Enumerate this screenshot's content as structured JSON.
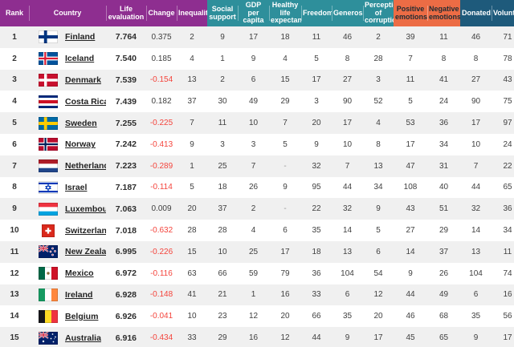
{
  "colors": {
    "purple": "#8E2E90",
    "teal": "#2E8F9B",
    "orange": "#EC6C45",
    "navy": "#1E5A7B",
    "negative_red": "#F4443C",
    "row_stripe": "#F0F0F0"
  },
  "header": {
    "columns": [
      {
        "id": "rank",
        "label": "Rank",
        "group": "purple"
      },
      {
        "id": "country",
        "label": "Country",
        "group": "purple"
      },
      {
        "id": "life_evaluation",
        "label": "Life evaluation",
        "group": "purple"
      },
      {
        "id": "change",
        "label": "Change",
        "group": "purple"
      },
      {
        "id": "inequality",
        "label": "Inequality",
        "group": "purple"
      },
      {
        "id": "social_support",
        "label": "Social support",
        "group": "teal"
      },
      {
        "id": "gdp_per_capita",
        "label": "GDP per capita",
        "group": "teal"
      },
      {
        "id": "healthy_life_expectancy",
        "label": "Healthy life expectancy",
        "group": "teal"
      },
      {
        "id": "freedom",
        "label": "Freedom",
        "group": "teal"
      },
      {
        "id": "generosity",
        "label": "Generosity",
        "group": "teal"
      },
      {
        "id": "perceptions_of_corruption",
        "label": "Perceptions of corruption",
        "group": "teal"
      },
      {
        "id": "positive_emotions",
        "label": "Positive emotions",
        "group": "orange"
      },
      {
        "id": "negative_emotions",
        "label": "Negative emotions",
        "group": "orange"
      },
      {
        "id": "donated",
        "label": "Donated",
        "group": "navy"
      },
      {
        "id": "volunteered",
        "label": "Volunteered",
        "group": "navy"
      }
    ]
  },
  "rows": [
    {
      "rank": "1",
      "country": "Finland",
      "flag": "fi",
      "life_evaluation": "7.764",
      "change": "0.375",
      "inequality": "2",
      "social_support": "9",
      "gdp_per_capita": "17",
      "healthy_life_expectancy": "18",
      "freedom": "11",
      "generosity": "46",
      "perceptions_of_corruption": "2",
      "positive_emotions": "39",
      "negative_emotions": "11",
      "donated": "46",
      "volunteered": "71"
    },
    {
      "rank": "2",
      "country": "Iceland",
      "flag": "is",
      "life_evaluation": "7.540",
      "change": "0.185",
      "inequality": "4",
      "social_support": "1",
      "gdp_per_capita": "9",
      "healthy_life_expectancy": "4",
      "freedom": "5",
      "generosity": "8",
      "perceptions_of_corruption": "28",
      "positive_emotions": "7",
      "negative_emotions": "8",
      "donated": "8",
      "volunteered": "78"
    },
    {
      "rank": "3",
      "country": "Denmark",
      "flag": "dk",
      "life_evaluation": "7.539",
      "change": "-0.154",
      "inequality": "13",
      "social_support": "2",
      "gdp_per_capita": "6",
      "healthy_life_expectancy": "15",
      "freedom": "17",
      "generosity": "27",
      "perceptions_of_corruption": "3",
      "positive_emotions": "11",
      "negative_emotions": "41",
      "donated": "27",
      "volunteered": "43"
    },
    {
      "rank": "4",
      "country": "Costa Rica",
      "flag": "cr",
      "life_evaluation": "7.439",
      "change": "0.182",
      "inequality": "37",
      "social_support": "30",
      "gdp_per_capita": "49",
      "healthy_life_expectancy": "29",
      "freedom": "3",
      "generosity": "90",
      "perceptions_of_corruption": "52",
      "positive_emotions": "5",
      "negative_emotions": "24",
      "donated": "90",
      "volunteered": "75"
    },
    {
      "rank": "5",
      "country": "Sweden",
      "flag": "se",
      "life_evaluation": "7.255",
      "change": "-0.225",
      "inequality": "7",
      "social_support": "11",
      "gdp_per_capita": "10",
      "healthy_life_expectancy": "7",
      "freedom": "20",
      "generosity": "17",
      "perceptions_of_corruption": "4",
      "positive_emotions": "53",
      "negative_emotions": "36",
      "donated": "17",
      "volunteered": "97"
    },
    {
      "rank": "6",
      "country": "Norway",
      "flag": "no",
      "life_evaluation": "7.242",
      "change": "-0.413",
      "inequality": "9",
      "social_support": "3",
      "gdp_per_capita": "3",
      "healthy_life_expectancy": "5",
      "freedom": "9",
      "generosity": "10",
      "perceptions_of_corruption": "8",
      "positive_emotions": "17",
      "negative_emotions": "34",
      "donated": "10",
      "volunteered": "24"
    },
    {
      "rank": "7",
      "country": "Netherlands",
      "flag": "nl",
      "life_evaluation": "7.223",
      "change": "-0.289",
      "inequality": "1",
      "social_support": "25",
      "gdp_per_capita": "7",
      "healthy_life_expectancy": "-",
      "freedom": "32",
      "generosity": "7",
      "perceptions_of_corruption": "13",
      "positive_emotions": "47",
      "negative_emotions": "31",
      "donated": "7",
      "volunteered": "22"
    },
    {
      "rank": "8",
      "country": "Israel",
      "flag": "il",
      "life_evaluation": "7.187",
      "change": "-0.114",
      "inequality": "5",
      "social_support": "18",
      "gdp_per_capita": "26",
      "healthy_life_expectancy": "9",
      "freedom": "95",
      "generosity": "44",
      "perceptions_of_corruption": "34",
      "positive_emotions": "108",
      "negative_emotions": "40",
      "donated": "44",
      "volunteered": "65"
    },
    {
      "rank": "9",
      "country": "Luxembourg",
      "flag": "lu",
      "life_evaluation": "7.063",
      "change": "0.009",
      "inequality": "20",
      "social_support": "37",
      "gdp_per_capita": "2",
      "healthy_life_expectancy": "-",
      "freedom": "22",
      "generosity": "32",
      "perceptions_of_corruption": "9",
      "positive_emotions": "43",
      "negative_emotions": "51",
      "donated": "32",
      "volunteered": "36"
    },
    {
      "rank": "10",
      "country": "Switzerland",
      "flag": "ch",
      "life_evaluation": "7.018",
      "change": "-0.632",
      "inequality": "28",
      "social_support": "28",
      "gdp_per_capita": "4",
      "healthy_life_expectancy": "6",
      "freedom": "35",
      "generosity": "14",
      "perceptions_of_corruption": "5",
      "positive_emotions": "27",
      "negative_emotions": "29",
      "donated": "14",
      "volunteered": "34"
    },
    {
      "rank": "11",
      "country": "New Zealand",
      "flag": "nz",
      "life_evaluation": "6.995",
      "change": "-0.226",
      "inequality": "15",
      "social_support": "10",
      "gdp_per_capita": "25",
      "healthy_life_expectancy": "17",
      "freedom": "18",
      "generosity": "13",
      "perceptions_of_corruption": "6",
      "positive_emotions": "14",
      "negative_emotions": "37",
      "donated": "13",
      "volunteered": "11"
    },
    {
      "rank": "12",
      "country": "Mexico",
      "flag": "mx",
      "life_evaluation": "6.972",
      "change": "-0.116",
      "inequality": "63",
      "social_support": "66",
      "gdp_per_capita": "59",
      "healthy_life_expectancy": "79",
      "freedom": "36",
      "generosity": "104",
      "perceptions_of_corruption": "54",
      "positive_emotions": "9",
      "negative_emotions": "26",
      "donated": "104",
      "volunteered": "74"
    },
    {
      "rank": "13",
      "country": "Ireland",
      "flag": "ie",
      "life_evaluation": "6.928",
      "change": "-0.148",
      "inequality": "41",
      "social_support": "21",
      "gdp_per_capita": "1",
      "healthy_life_expectancy": "16",
      "freedom": "33",
      "generosity": "6",
      "perceptions_of_corruption": "12",
      "positive_emotions": "44",
      "negative_emotions": "49",
      "donated": "6",
      "volunteered": "16"
    },
    {
      "rank": "14",
      "country": "Belgium",
      "flag": "be",
      "life_evaluation": "6.926",
      "change": "-0.041",
      "inequality": "10",
      "social_support": "23",
      "gdp_per_capita": "12",
      "healthy_life_expectancy": "20",
      "freedom": "66",
      "generosity": "35",
      "perceptions_of_corruption": "20",
      "positive_emotions": "46",
      "negative_emotions": "68",
      "donated": "35",
      "volunteered": "56"
    },
    {
      "rank": "15",
      "country": "Australia",
      "flag": "au",
      "life_evaluation": "6.916",
      "change": "-0.434",
      "inequality": "33",
      "social_support": "29",
      "gdp_per_capita": "16",
      "healthy_life_expectancy": "12",
      "freedom": "44",
      "generosity": "9",
      "perceptions_of_corruption": "17",
      "positive_emotions": "45",
      "negative_emotions": "65",
      "donated": "9",
      "volunteered": "17"
    }
  ]
}
